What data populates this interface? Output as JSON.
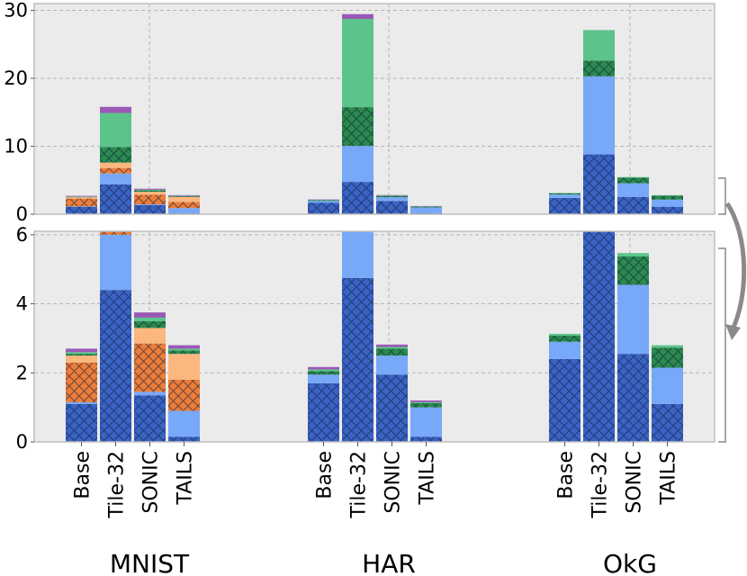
{
  "chart_data": {
    "type": "bar",
    "stacked": true,
    "broken_axis": true,
    "panels": [
      {
        "name": "top",
        "ylim": [
          0,
          31
        ],
        "yticks": [
          "0",
          "10",
          "20",
          "30"
        ],
        "ytick_values": [
          0,
          10,
          20,
          30
        ]
      },
      {
        "name": "bottom",
        "ylim": [
          0,
          6.1
        ],
        "yticks": [
          "0",
          "2",
          "4",
          "6"
        ],
        "ytick_values": [
          0,
          2,
          4,
          6
        ]
      }
    ],
    "groups": [
      "MNIST",
      "HAR",
      "OkG"
    ],
    "categories": [
      "Base",
      "Tile-32",
      "SONIC",
      "TAILS"
    ],
    "segment_styles": [
      {
        "color": "#3a63c4",
        "hatch": true
      },
      {
        "color": "#78a8f8",
        "hatch": false
      },
      {
        "color": "#ec7d3a",
        "hatch": true
      },
      {
        "color": "#fbb77d",
        "hatch": false
      },
      {
        "color": "#2b8a4e",
        "hatch": true
      },
      {
        "color": "#5cc48b",
        "hatch": false
      },
      {
        "color": "#9b59b6",
        "hatch": false
      }
    ],
    "bars": [
      {
        "group": "MNIST",
        "category": "Base",
        "segments": [
          1.1,
          0.05,
          1.15,
          0.2,
          0.05,
          0.05,
          0.1
        ]
      },
      {
        "group": "MNIST",
        "category": "Tile-32",
        "segments": [
          4.4,
          1.6,
          0.8,
          0.8,
          2.3,
          5.0,
          0.9
        ]
      },
      {
        "group": "MNIST",
        "category": "SONIC",
        "segments": [
          1.35,
          0.1,
          1.4,
          0.45,
          0.2,
          0.1,
          0.15
        ]
      },
      {
        "group": "MNIST",
        "category": "TAILS",
        "segments": [
          0.15,
          0.75,
          0.9,
          0.75,
          0.1,
          0.05,
          0.1
        ]
      },
      {
        "group": "HAR",
        "category": "Base",
        "segments": [
          1.7,
          0.25,
          0.0,
          0.0,
          0.1,
          0.05,
          0.07
        ]
      },
      {
        "group": "HAR",
        "category": "Tile-32",
        "segments": [
          4.75,
          5.3,
          0.0,
          0.0,
          5.7,
          13.0,
          0.7
        ]
      },
      {
        "group": "HAR",
        "category": "SONIC",
        "segments": [
          1.95,
          0.55,
          0.0,
          0.0,
          0.2,
          0.05,
          0.07
        ]
      },
      {
        "group": "HAR",
        "category": "TAILS",
        "segments": [
          0.15,
          0.85,
          0.0,
          0.0,
          0.12,
          0.03,
          0.05
        ]
      },
      {
        "group": "OkG",
        "category": "Base",
        "segments": [
          2.4,
          0.5,
          0.0,
          0.0,
          0.18,
          0.05,
          0.0
        ]
      },
      {
        "group": "OkG",
        "category": "Tile-32",
        "segments": [
          8.8,
          11.5,
          0.0,
          0.0,
          2.3,
          4.5,
          0.0
        ]
      },
      {
        "group": "OkG",
        "category": "SONIC",
        "segments": [
          2.55,
          2.0,
          0.0,
          0.0,
          0.82,
          0.1,
          0.0
        ]
      },
      {
        "group": "OkG",
        "category": "TAILS",
        "segments": [
          1.1,
          1.05,
          0.0,
          0.0,
          0.58,
          0.07,
          0.0
        ]
      }
    ]
  }
}
